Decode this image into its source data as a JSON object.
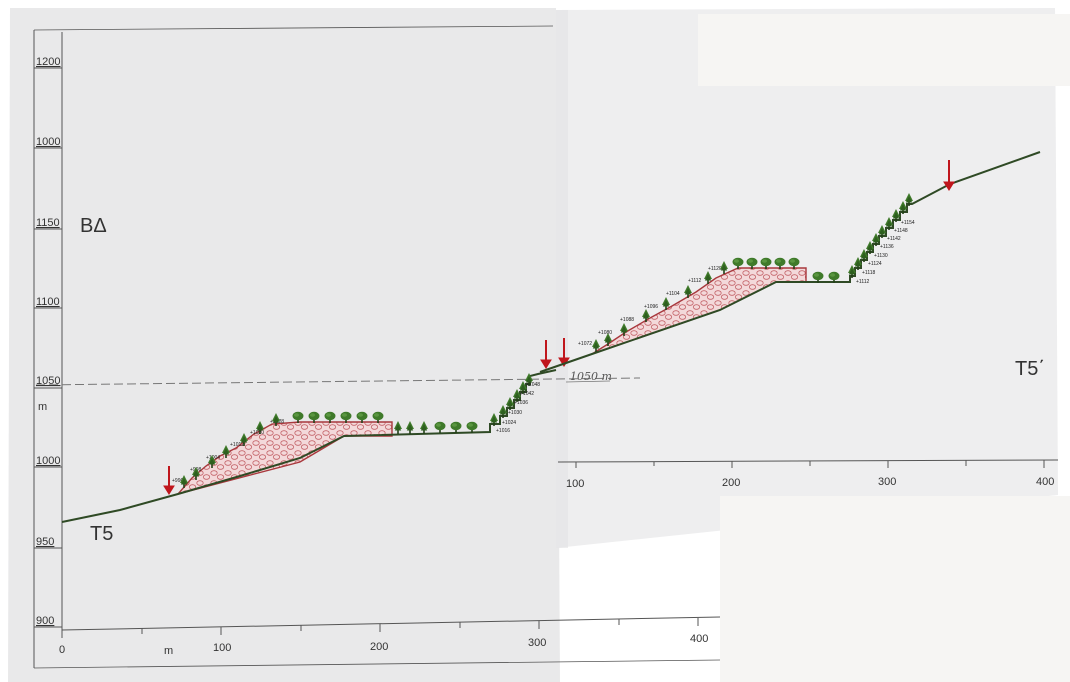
{
  "left_sheet": {
    "y_axis_labels": [
      "1200",
      "1000",
      "1150",
      "1100",
      "1050",
      "1000",
      "950",
      "900"
    ],
    "unit_label": "m",
    "x_axis_labels": [
      "0",
      "100",
      "200",
      "300",
      "400"
    ],
    "x_unit_label": "m",
    "code_label": "ΒΔ",
    "section_label": "T5",
    "level_labels": [
      "+996",
      "+998",
      "+1004",
      "+1012",
      "+1020",
      "+1028",
      "+1016",
      "+1024",
      "+1030",
      "+1036",
      "+1042",
      "+1048"
    ]
  },
  "right_sheet": {
    "x_axis_labels": [
      "100",
      "200",
      "300",
      "400"
    ],
    "section_label": "T5΄",
    "handwritten_note": "1050 m",
    "level_labels": [
      "+1072",
      "+1080",
      "+1088",
      "+1096",
      "+1104",
      "+1112",
      "+1120",
      "+1112",
      "+1118",
      "+1124",
      "+1130",
      "+1136",
      "+1142",
      "+1148",
      "+1154"
    ]
  },
  "colors": {
    "ground_line": "#2f4a25",
    "fill_hatch": "#d98f95",
    "fill_outline": "#a8383d",
    "tree_green": "#3f7a2a",
    "trunk": "#234018",
    "marker_arrow": "#c0161c",
    "paper": "#ecebea",
    "overlay_paper": "#f6f5f3"
  }
}
